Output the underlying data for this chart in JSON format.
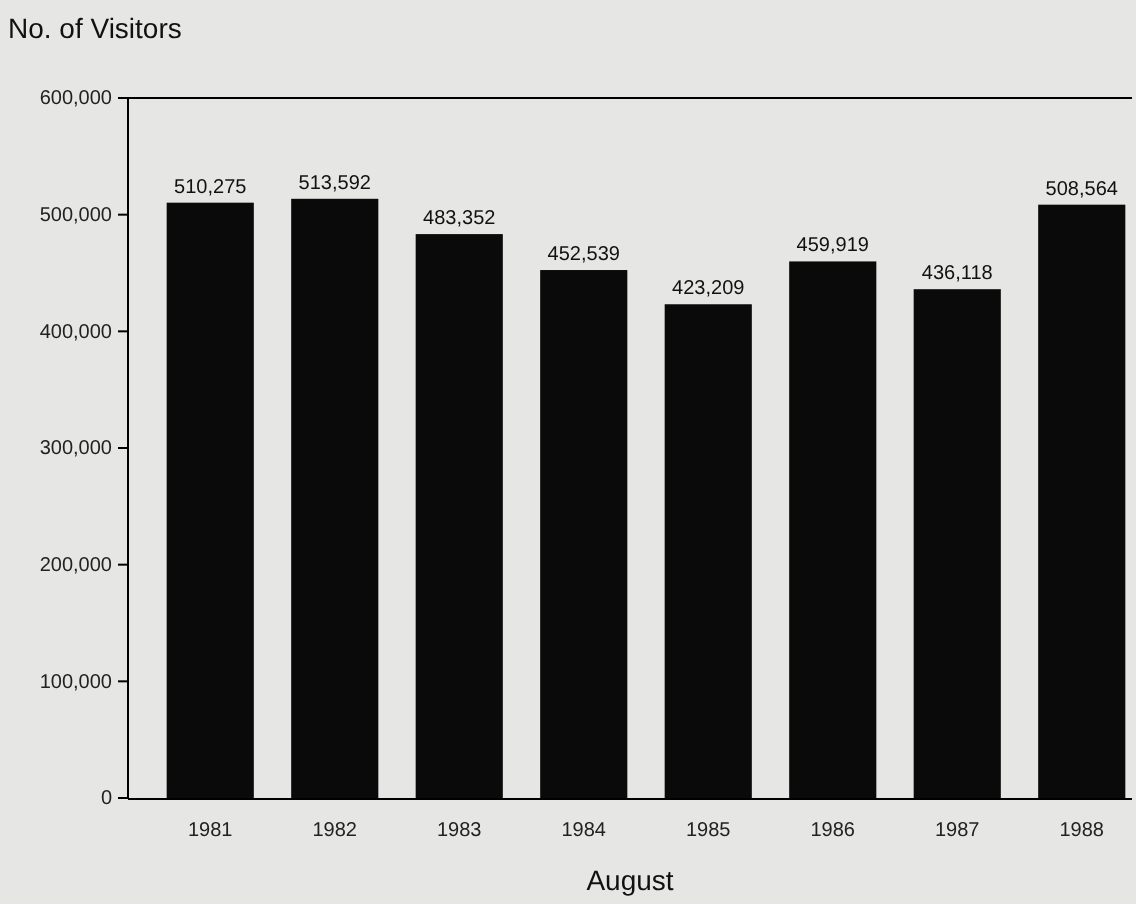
{
  "chart_data": {
    "type": "bar",
    "ylabel": "No. of Visitors",
    "xlabel": "August",
    "categories": [
      "1981",
      "1982",
      "1983",
      "1984",
      "1985",
      "1986",
      "1987",
      "1988"
    ],
    "values": [
      510275,
      513592,
      483352,
      452539,
      423209,
      459919,
      436118,
      508564
    ],
    "color": "#0a0a0a",
    "ylim": [
      0,
      600000
    ],
    "yticks": [
      {
        "value": 0,
        "label": "0"
      },
      {
        "value": 100000,
        "label": "100,000"
      },
      {
        "value": 200000,
        "label": "200,000"
      },
      {
        "value": 300000,
        "label": "300,000"
      },
      {
        "value": 400000,
        "label": "400,000"
      },
      {
        "value": 500000,
        "label": "500,000"
      },
      {
        "value": 600000,
        "label": "600,000"
      }
    ],
    "value_labels": [
      "510,275",
      "513,592",
      "483,352",
      "452,539",
      "423,209",
      "459,919",
      "436,118",
      "508,564"
    ],
    "grid": false
  }
}
